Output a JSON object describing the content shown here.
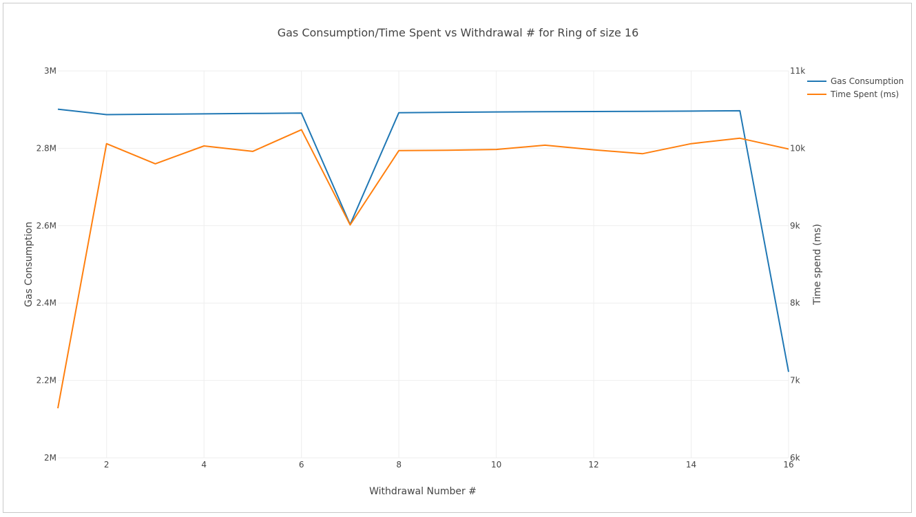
{
  "chart_data": {
    "type": "line",
    "title": "Gas Consumption/Time Spent vs Withdrawal # for Ring of size 16",
    "xlabel": "Withdrawal Number #",
    "ylabel": "Gas Consumption",
    "y2label": "Time spend (ms)",
    "xlim": [
      1,
      16
    ],
    "ylim": [
      2000000,
      3000000
    ],
    "y2lim": [
      6000,
      11000
    ],
    "x_ticks": [
      2,
      4,
      6,
      8,
      10,
      12,
      14,
      16
    ],
    "x_tick_labels": [
      "2",
      "4",
      "6",
      "8",
      "10",
      "12",
      "14",
      "16"
    ],
    "y_ticks": [
      2000000,
      2200000,
      2400000,
      2600000,
      2800000,
      3000000
    ],
    "y_tick_labels": [
      "2M",
      "2.2M",
      "2.4M",
      "2.6M",
      "2.8M",
      "3M"
    ],
    "y2_ticks": [
      6000,
      7000,
      8000,
      9000,
      10000,
      11000
    ],
    "y2_tick_labels": [
      "6k",
      "7k",
      "8k",
      "9k",
      "10k",
      "11k"
    ],
    "grid": true,
    "legend_position": "top-right",
    "x": [
      1,
      2,
      3,
      4,
      5,
      6,
      7,
      8,
      9,
      10,
      11,
      12,
      13,
      14,
      15,
      16
    ],
    "series": [
      {
        "name": "Gas Consumption",
        "axis": "left",
        "color": "#1f77b4",
        "values": [
          2901000,
          2887000,
          2888000,
          2889000,
          2890000,
          2891000,
          2603000,
          2892000,
          2893000,
          2894000,
          2894500,
          2895000,
          2895500,
          2896000,
          2897000,
          2222000
        ]
      },
      {
        "name": "Time Spent (ms)",
        "axis": "right",
        "color": "#ff7f0e",
        "values": [
          6640,
          10060,
          9800,
          10030,
          9960,
          10240,
          9010,
          9970,
          9975,
          9985,
          10040,
          9980,
          9930,
          10060,
          10130,
          9990
        ]
      }
    ]
  }
}
